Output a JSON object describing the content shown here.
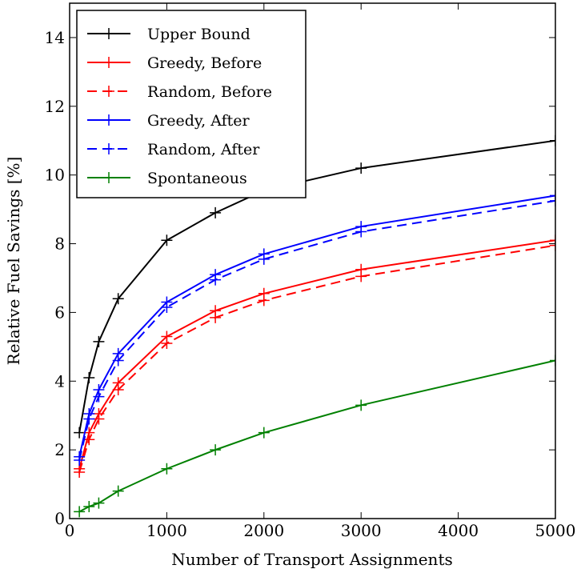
{
  "chart_data": {
    "type": "line",
    "title": "",
    "xlabel": "Number of Transport Assignments",
    "ylabel": "Relative Fuel Savings [%]",
    "xlim": [
      0,
      5000
    ],
    "ylim": [
      0,
      15
    ],
    "xticks": [
      0,
      1000,
      2000,
      3000,
      4000,
      5000
    ],
    "yticks": [
      0,
      2,
      4,
      6,
      8,
      10,
      12,
      14
    ],
    "grid": false,
    "legend_position": "top-left",
    "series": [
      {
        "name": "Upper Bound",
        "color": "#000000",
        "dash": "solid",
        "x": [
          100,
          200,
          300,
          500,
          1000,
          1500,
          2000,
          3000,
          5000
        ],
        "y": [
          2.5,
          4.1,
          5.15,
          6.4,
          8.1,
          8.9,
          9.55,
          10.2,
          11.0
        ]
      },
      {
        "name": "Greedy, Before",
        "color": "#ff0000",
        "dash": "solid",
        "x": [
          100,
          200,
          300,
          500,
          1000,
          1500,
          2000,
          3000,
          5000
        ],
        "y": [
          1.45,
          2.5,
          3.05,
          3.95,
          5.3,
          6.05,
          6.55,
          7.25,
          8.1
        ]
      },
      {
        "name": "Random, Before",
        "color": "#ff0000",
        "dash": "dashed",
        "x": [
          100,
          200,
          300,
          500,
          1000,
          1500,
          2000,
          3000,
          5000
        ],
        "y": [
          1.35,
          2.3,
          2.9,
          3.75,
          5.1,
          5.85,
          6.35,
          7.05,
          7.95
        ]
      },
      {
        "name": "Greedy, After",
        "color": "#0000ff",
        "dash": "solid",
        "x": [
          100,
          200,
          300,
          500,
          1000,
          1500,
          2000,
          3000,
          5000
        ],
        "y": [
          1.8,
          3.05,
          3.75,
          4.8,
          6.3,
          7.1,
          7.7,
          8.5,
          9.4
        ]
      },
      {
        "name": "Random, After",
        "color": "#0000ff",
        "dash": "dashed",
        "x": [
          100,
          200,
          300,
          500,
          1000,
          1500,
          2000,
          3000,
          5000
        ],
        "y": [
          1.7,
          2.9,
          3.55,
          4.6,
          6.15,
          6.95,
          7.55,
          8.35,
          9.25
        ]
      },
      {
        "name": "Spontaneous",
        "color": "#008000",
        "dash": "solid",
        "x": [
          100,
          200,
          300,
          500,
          1000,
          1500,
          2000,
          3000,
          5000
        ],
        "y": [
          0.2,
          0.35,
          0.45,
          0.8,
          1.45,
          2.0,
          2.5,
          3.3,
          4.6
        ]
      }
    ]
  }
}
